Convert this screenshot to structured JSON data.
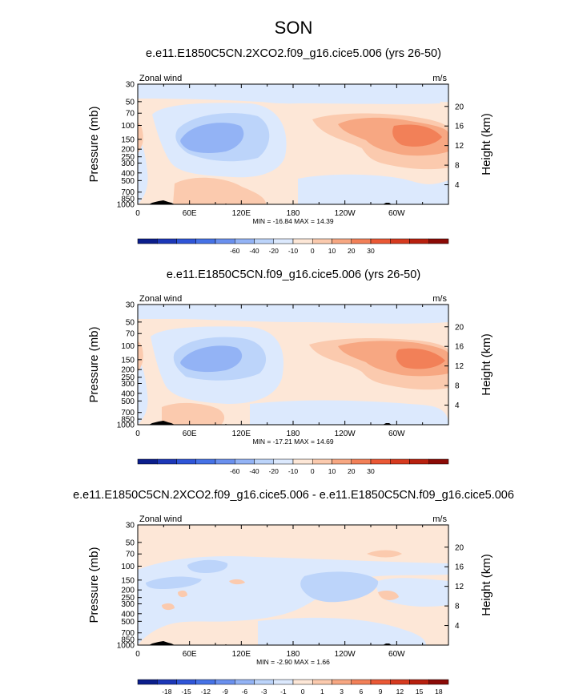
{
  "page_title": "SON",
  "colors": {
    "axis": "#000000",
    "terrain": "#000000",
    "palette_note": "blue-white-red diverging"
  },
  "chart_data": [
    {
      "type": "heatmap",
      "title": "e.e11.E1850C5CN.2XCO2.f09_g16.cice5.006 (yrs 26-50)",
      "left_label": "Zonal wind",
      "units": "m/s",
      "xlabel": "",
      "ylabel": "Pressure (mb)",
      "y2label": "Height (km)",
      "x_ticks": [
        "0",
        "60E",
        "120E",
        "180",
        "120W",
        "60W"
      ],
      "y_ticks": [
        "30",
        "50",
        "70",
        "100",
        "150",
        "200",
        "250",
        "300",
        "400",
        "500",
        "700",
        "850",
        "1000"
      ],
      "y2_ticks": [
        "20",
        "16",
        "12",
        "8",
        "4"
      ],
      "stats": "MIN = -16.84  MAX =  14.39",
      "colorbar": {
        "levels": [
          "-60",
          "-40",
          "-20",
          "-10",
          "0",
          "10",
          "20",
          "30"
        ],
        "colors": [
          "#0b1e8c",
          "#1c37b8",
          "#2f55d8",
          "#4672e6",
          "#6a90ee",
          "#93b3f5",
          "#bcd4fa",
          "#dce9fd",
          "#fde7d7",
          "#fbcaae",
          "#f7a782",
          "#f28058",
          "#ea5835",
          "#d63a1f",
          "#b8200e",
          "#8b0a06"
        ]
      }
    },
    {
      "type": "heatmap",
      "title": "e.e11.E1850C5CN.f09_g16.cice5.006 (yrs 26-50)",
      "left_label": "Zonal wind",
      "units": "m/s",
      "xlabel": "",
      "ylabel": "Pressure (mb)",
      "y2label": "Height (km)",
      "x_ticks": [
        "0",
        "60E",
        "120E",
        "180",
        "120W",
        "60W"
      ],
      "y_ticks": [
        "30",
        "50",
        "70",
        "100",
        "150",
        "200",
        "250",
        "300",
        "400",
        "500",
        "700",
        "850",
        "1000"
      ],
      "y2_ticks": [
        "20",
        "16",
        "12",
        "8",
        "4"
      ],
      "stats": "MIN = -17.21  MAX =  14.69",
      "colorbar": {
        "levels": [
          "-60",
          "-40",
          "-20",
          "-10",
          "0",
          "10",
          "20",
          "30"
        ],
        "colors": [
          "#0b1e8c",
          "#1c37b8",
          "#2f55d8",
          "#4672e6",
          "#6a90ee",
          "#93b3f5",
          "#bcd4fa",
          "#dce9fd",
          "#fde7d7",
          "#fbcaae",
          "#f7a782",
          "#f28058",
          "#ea5835",
          "#d63a1f",
          "#b8200e",
          "#8b0a06"
        ]
      }
    },
    {
      "type": "heatmap",
      "title": "e.e11.E1850C5CN.2XCO2.f09_g16.cice5.006 - e.e11.E1850C5CN.f09_g16.cice5.006",
      "left_label": "Zonal wind",
      "units": "m/s",
      "xlabel": "",
      "ylabel": "Pressure (mb)",
      "y2label": "Height (km)",
      "x_ticks": [
        "0",
        "60E",
        "120E",
        "180",
        "120W",
        "60W"
      ],
      "y_ticks": [
        "30",
        "50",
        "70",
        "100",
        "150",
        "200",
        "250",
        "300",
        "400",
        "500",
        "700",
        "850",
        "1000"
      ],
      "y2_ticks": [
        "20",
        "16",
        "12",
        "8",
        "4"
      ],
      "stats": "MIN = -2.90  MAX =  1.66",
      "colorbar": {
        "levels": [
          "-18",
          "-15",
          "-12",
          "-9",
          "-6",
          "-3",
          "-1",
          "0",
          "1",
          "3",
          "6",
          "9",
          "12",
          "15",
          "18"
        ],
        "colors": [
          "#0b1e8c",
          "#1c37b8",
          "#2f55d8",
          "#4672e6",
          "#6a90ee",
          "#93b3f5",
          "#bcd4fa",
          "#dce9fd",
          "#fde7d7",
          "#fbcaae",
          "#f7a782",
          "#f28058",
          "#ea5835",
          "#d63a1f",
          "#b8200e",
          "#8b0a06"
        ]
      }
    }
  ]
}
